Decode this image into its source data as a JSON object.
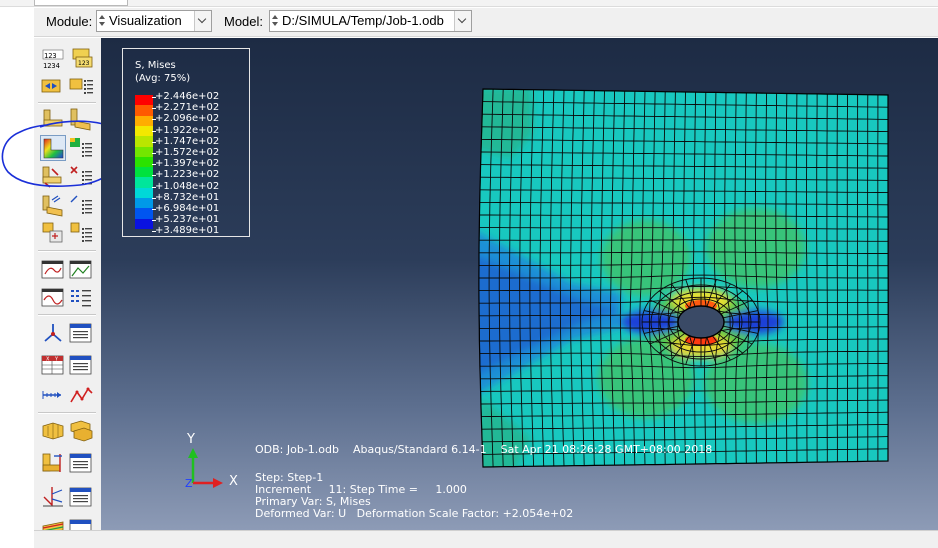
{
  "context_bar": {
    "module_label": "Module:",
    "module_value": "Visualization",
    "model_label": "Model:",
    "model_value": "D:/SIMULA/Temp/Job-1.odb"
  },
  "toolbox": {
    "tools": [
      {
        "name": "field-output-tool",
        "icon": "field-output-icon"
      },
      {
        "name": "step-frame-tool",
        "icon": "step-frame-icon"
      },
      {
        "name": "common-options-tool",
        "icon": "common-options-icon"
      },
      {
        "name": "odb-display-options-tool",
        "icon": "odb-display-icon"
      },
      {
        "name": "plot-undeformed-tool",
        "icon": "undeformed-shape-icon"
      },
      {
        "name": "plot-deformed-tool",
        "icon": "deformed-shape-icon"
      },
      {
        "name": "plot-contours-tool",
        "icon": "contour-plot-icon"
      },
      {
        "name": "contour-options-tool",
        "icon": "contour-options-icon"
      },
      {
        "name": "plot-symbols-tool",
        "icon": "symbol-plot-icon"
      },
      {
        "name": "symbol-options-tool",
        "icon": "symbol-options-icon"
      },
      {
        "name": "plot-material-orientations-tool",
        "icon": "material-orientation-icon"
      },
      {
        "name": "orientation-options-tool",
        "icon": "orientation-options-icon"
      },
      {
        "name": "allow-multiple-plot-states-tool",
        "icon": "multiple-plot-states-icon"
      },
      {
        "name": "superimpose-options-tool",
        "icon": "superimpose-options-icon"
      },
      {
        "name": "animate-time-history-tool",
        "icon": "animate-icon"
      },
      {
        "name": "animation-options-tool",
        "icon": "animation-options-icon"
      },
      {
        "name": "animate-scale-factor-tool",
        "icon": "animate-scale-icon"
      },
      {
        "name": "animate-harmonic-tool",
        "icon": "animate-harmonic-icon"
      },
      {
        "name": "view-cut-tool",
        "icon": "view-cut-icon"
      },
      {
        "name": "view-cut-manager-tool",
        "icon": "view-cut-manager-icon"
      },
      {
        "name": "create-xy-data-tool",
        "icon": "xy-data-icon"
      },
      {
        "name": "xy-data-manager-tool",
        "icon": "xy-data-manager-icon"
      },
      {
        "name": "create-path-tool",
        "icon": "path-icon"
      },
      {
        "name": "xy-plot-tool",
        "icon": "xy-plot-icon"
      },
      {
        "name": "display-group-tool",
        "icon": "display-group-icon"
      },
      {
        "name": "display-group-manager-tool",
        "icon": "display-group-manager-icon"
      },
      {
        "name": "free-body-cut-tool",
        "icon": "free-body-icon"
      },
      {
        "name": "free-body-manager-tool",
        "icon": "free-body-manager-icon"
      },
      {
        "name": "stream-tool",
        "icon": "stream-icon"
      },
      {
        "name": "stream-manager-tool",
        "icon": "stream-manager-icon"
      },
      {
        "name": "cut-tool",
        "icon": "cut-icon"
      },
      {
        "name": "cut-manager-tool",
        "icon": "cut-manager-icon"
      }
    ]
  },
  "legend": {
    "title": "S, Mises",
    "subtitle": "(Avg: 75%)",
    "colors": [
      "#ff0000",
      "#ff5a00",
      "#ffad00",
      "#f3e800",
      "#b9e600",
      "#73e600",
      "#2be200",
      "#00e23e",
      "#00e69b",
      "#00d8d8",
      "#0099e8",
      "#0055f0",
      "#0a12e0"
    ],
    "values": [
      "+2.446e+02",
      "+2.271e+02",
      "+2.096e+02",
      "+1.922e+02",
      "+1.747e+02",
      "+1.572e+02",
      "+1.397e+02",
      "+1.223e+02",
      "+1.048e+02",
      "+8.732e+01",
      "+6.984e+01",
      "+5.237e+01",
      "+3.489e+01"
    ]
  },
  "triad": {
    "y_label": "Y",
    "x_label": "X",
    "z_label": "Z"
  },
  "info": {
    "odb_line": "ODB: Job-1.odb    Abaqus/Standard 6.14-1    Sat Apr 21 08:26:28 GMT+08:00 2018",
    "step_line": "Step: Step-1",
    "increment_line": "Increment     11: Step Time =     1.000",
    "primary_line": "Primary Var: S, Mises",
    "deformed_line": "Deformed Var: U   Deformation Scale Factor: +2.054e+02"
  }
}
